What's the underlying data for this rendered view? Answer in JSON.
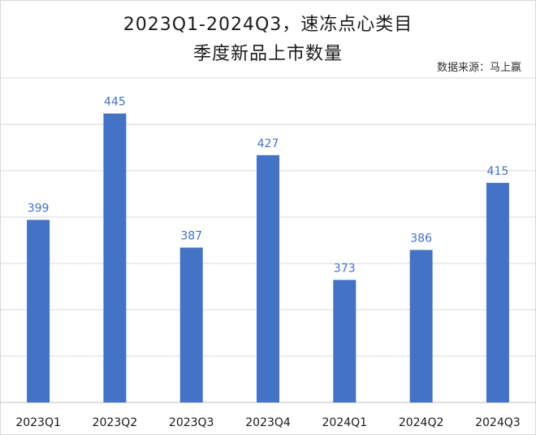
{
  "chart_data": {
    "type": "bar",
    "title_lines": [
      "2023Q1-2024Q3，速冻点心类目",
      "季度新品上市数量"
    ],
    "source": "数据来源：马上赢",
    "categories": [
      "2023Q1",
      "2023Q2",
      "2023Q3",
      "2023Q4",
      "2024Q1",
      "2024Q2",
      "2024Q3"
    ],
    "values": [
      399,
      445,
      387,
      427,
      373,
      386,
      415
    ],
    "ylim": [
      320,
      460
    ],
    "grid": true,
    "legend": "none",
    "colors": {
      "bar": "#4472c4",
      "data_label": "#4472c4",
      "gridline": "#d9d9d9"
    }
  }
}
